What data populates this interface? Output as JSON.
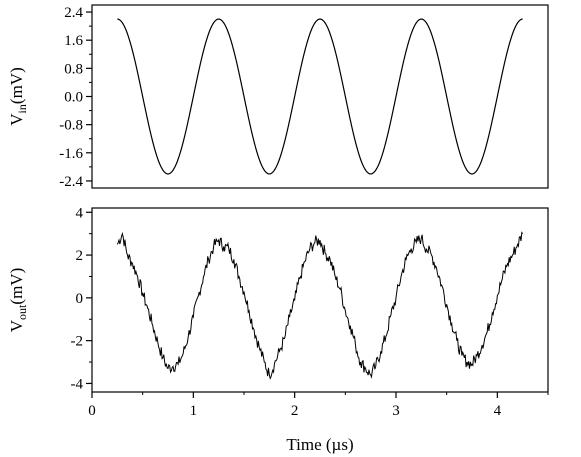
{
  "chart_data": [
    {
      "type": "line",
      "ylabel_main": "V",
      "ylabel_sub": "in",
      "ylabel_unit": "(mV)",
      "xlim": [
        0,
        4.5
      ],
      "ylim": [
        -2.6,
        2.6
      ],
      "yticks": [
        -2.4,
        -1.6,
        -0.8,
        0.0,
        0.8,
        1.6,
        2.4
      ],
      "ytick_labels": [
        "-2.4",
        "-1.6",
        "-0.8",
        "0.0",
        "0.8",
        "1.6",
        "2.4"
      ],
      "grid": false,
      "series": [
        {
          "x_start": 0.25,
          "x_end": 4.25,
          "amplitude": 2.2,
          "period": 1.0,
          "peak_at": 0.25
        }
      ]
    },
    {
      "type": "line",
      "xlabel": "Time (µs)",
      "ylabel_main": "V",
      "ylabel_sub": "out",
      "ylabel_unit": "(mV)",
      "xlim": [
        0,
        4.5
      ],
      "ylim": [
        -4.4,
        4.2
      ],
      "xticks": [
        0,
        1,
        2,
        3,
        4
      ],
      "xtick_labels": [
        "0",
        "1",
        "2",
        "3",
        "4"
      ],
      "yticks": [
        -4,
        -2,
        0,
        2,
        4
      ],
      "ytick_labels": [
        "-4",
        "-2",
        "0",
        "2",
        "4"
      ],
      "grid": false,
      "series": [
        {
          "points": [
            [
              0.25,
              2.5
            ],
            [
              0.3,
              3.0
            ],
            [
              0.35,
              2.0
            ],
            [
              0.4,
              1.6
            ],
            [
              0.45,
              1.0
            ],
            [
              0.5,
              0.2
            ],
            [
              0.55,
              -0.5
            ],
            [
              0.6,
              -1.3
            ],
            [
              0.65,
              -2.1
            ],
            [
              0.7,
              -2.8
            ],
            [
              0.75,
              -3.3
            ],
            [
              0.8,
              -3.2
            ],
            [
              0.85,
              -3.1
            ],
            [
              0.9,
              -2.6
            ],
            [
              0.95,
              -1.8
            ],
            [
              1.0,
              -0.9
            ],
            [
              1.05,
              0.1
            ],
            [
              1.1,
              1.0
            ],
            [
              1.15,
              1.8
            ],
            [
              1.2,
              2.4
            ],
            [
              1.25,
              2.7
            ],
            [
              1.3,
              2.4
            ],
            [
              1.35,
              2.3
            ],
            [
              1.4,
              1.8
            ],
            [
              1.45,
              1.0
            ],
            [
              1.5,
              0.3
            ],
            [
              1.55,
              -0.6
            ],
            [
              1.6,
              -1.5
            ],
            [
              1.65,
              -2.3
            ],
            [
              1.7,
              -3.0
            ],
            [
              1.75,
              -3.6
            ],
            [
              1.8,
              -3.1
            ],
            [
              1.85,
              -2.5
            ],
            [
              1.9,
              -1.9
            ],
            [
              1.95,
              -0.9
            ],
            [
              2.0,
              -0.1
            ],
            [
              2.05,
              0.9
            ],
            [
              2.1,
              1.7
            ],
            [
              2.15,
              2.3
            ],
            [
              2.2,
              2.6
            ],
            [
              2.25,
              2.7
            ],
            [
              2.3,
              2.1
            ],
            [
              2.35,
              1.8
            ],
            [
              2.4,
              1.0
            ],
            [
              2.45,
              0.4
            ],
            [
              2.5,
              -0.6
            ],
            [
              2.55,
              -1.3
            ],
            [
              2.6,
              -2.2
            ],
            [
              2.65,
              -3.0
            ],
            [
              2.7,
              -3.3
            ],
            [
              2.75,
              -3.6
            ],
            [
              2.8,
              -3.2
            ],
            [
              2.85,
              -2.5
            ],
            [
              2.9,
              -1.8
            ],
            [
              2.95,
              -0.8
            ],
            [
              3.0,
              0.0
            ],
            [
              3.05,
              1.0
            ],
            [
              3.1,
              1.8
            ],
            [
              3.15,
              2.3
            ],
            [
              3.2,
              2.6
            ],
            [
              3.25,
              2.8
            ],
            [
              3.3,
              2.3
            ],
            [
              3.35,
              2.0
            ],
            [
              3.4,
              1.4
            ],
            [
              3.45,
              0.6
            ],
            [
              3.5,
              -0.3
            ],
            [
              3.55,
              -1.2
            ],
            [
              3.6,
              -2.0
            ],
            [
              3.65,
              -2.7
            ],
            [
              3.7,
              -3.0
            ],
            [
              3.75,
              -3.1
            ],
            [
              3.8,
              -2.7
            ],
            [
              3.85,
              -2.2
            ],
            [
              3.9,
              -1.6
            ],
            [
              3.95,
              -0.7
            ],
            [
              4.0,
              0.1
            ],
            [
              4.05,
              0.9
            ],
            [
              4.1,
              1.6
            ],
            [
              4.15,
              2.0
            ],
            [
              4.2,
              2.5
            ],
            [
              4.25,
              3.0
            ]
          ]
        }
      ]
    }
  ]
}
